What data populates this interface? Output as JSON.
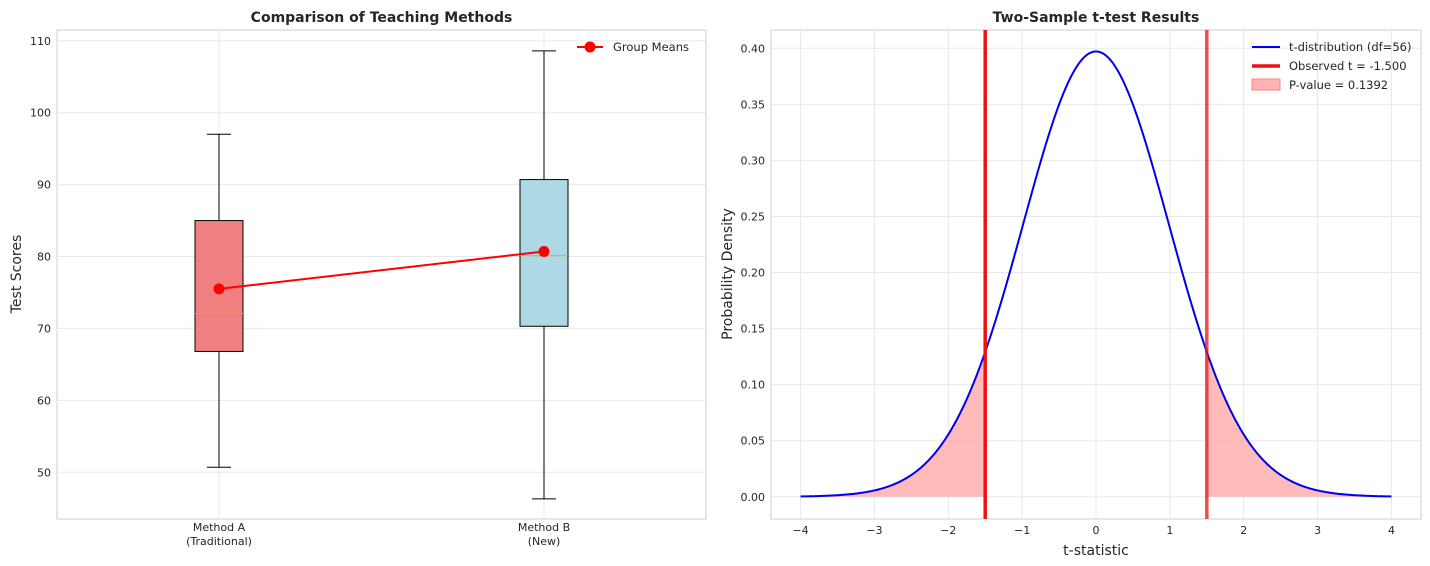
{
  "colors": {
    "box_a": "#f08080",
    "box_b": "#add8e6",
    "median": "#e0a030",
    "means": "#ff0000",
    "curve": "#0000ee",
    "observed": "#ee1111",
    "pvalue_fill": "#ffb3b3",
    "grid": "#e8e8e8",
    "frame": "#cccccc"
  },
  "chart_data": [
    {
      "type": "box",
      "title": "Comparison of Teaching Methods",
      "xlabel": "",
      "ylabel": "Test Scores",
      "ylim": [
        43.5,
        111.5
      ],
      "yticks": [
        50,
        60,
        70,
        80,
        90,
        100,
        110
      ],
      "grid": true,
      "legend": {
        "placement": "top-right",
        "entries": [
          "Group Means"
        ]
      },
      "categories": [
        {
          "label_line1": "Method A",
          "label_line2": "(Traditional)"
        },
        {
          "label_line1": "Method B",
          "label_line2": "(New)"
        }
      ],
      "boxes": [
        {
          "whisker_low": 50.7,
          "q1": 66.8,
          "median": 72.1,
          "q3": 85.0,
          "whisker_high": 97.0,
          "mean": 75.5
        },
        {
          "whisker_low": 46.3,
          "q1": 70.3,
          "median": 80.1,
          "q3": 90.7,
          "whisker_high": 108.6,
          "mean": 80.7
        }
      ],
      "series": [
        {
          "name": "Group Means",
          "values": [
            75.5,
            80.7
          ]
        }
      ]
    },
    {
      "type": "line",
      "title": "Two-Sample t-test Results",
      "xlabel": "t-statistic",
      "ylabel": "Probability Density",
      "xlim": [
        -4.4,
        4.4
      ],
      "ylim": [
        -0.0198,
        0.4163
      ],
      "xticks": [
        -4,
        -3,
        -2,
        -1,
        0,
        1,
        2,
        3,
        4
      ],
      "yticks": [
        0.0,
        0.05,
        0.1,
        0.15,
        0.2,
        0.25,
        0.3,
        0.35,
        0.4
      ],
      "ytick_labels": [
        "0.00",
        "0.05",
        "0.10",
        "0.15",
        "0.20",
        "0.25",
        "0.30",
        "0.35",
        "0.40"
      ],
      "xtick_labels": [
        "−4",
        "−3",
        "−2",
        "−1",
        "0",
        "1",
        "2",
        "3",
        "4"
      ],
      "grid": true,
      "legend": {
        "placement": "top-right",
        "entries": [
          "t-distribution (df=56)",
          "Observed t = -1.500",
          "P-value = 0.1392"
        ]
      },
      "df": 56,
      "x_range": [
        -4,
        4
      ],
      "observed_t": -1.5,
      "critical_lines": [
        -1.5,
        1.5
      ],
      "p_value": 0.1392
    }
  ]
}
